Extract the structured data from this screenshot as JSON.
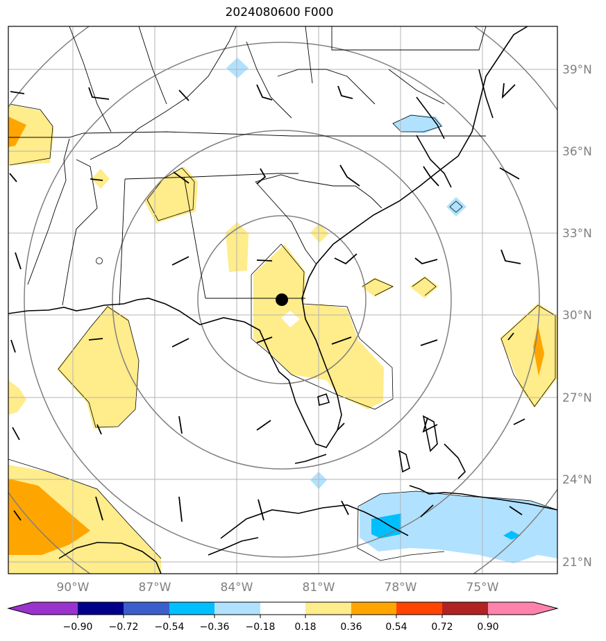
{
  "title": "2024080600 F000",
  "longitude_ticks": [
    "90°W",
    "87°W",
    "84°W",
    "81°W",
    "78°W",
    "75°W"
  ],
  "latitude_ticks": [
    "39°N",
    "36°N",
    "33°N",
    "30°N",
    "27°N",
    "24°N",
    "21°N"
  ],
  "colorbar": {
    "ticks": [
      "−0.90",
      "−0.72",
      "−0.54",
      "−0.36",
      "−0.18",
      "0.18",
      "0.36",
      "0.54",
      "0.72",
      "0.90"
    ],
    "colors": [
      "#9a32cd",
      "#00008b",
      "#3a5fcd",
      "#00bfff",
      "#b0e2ff",
      "#ffffff",
      "#ffec8b",
      "#ffa500",
      "#ff4500",
      "#b22222",
      "#ff82ab"
    ]
  },
  "styles": {
    "grid_color": "#b3b3b3",
    "ring_color": "#808080",
    "coast_color": "#000000",
    "marker_color": "#000000"
  }
}
